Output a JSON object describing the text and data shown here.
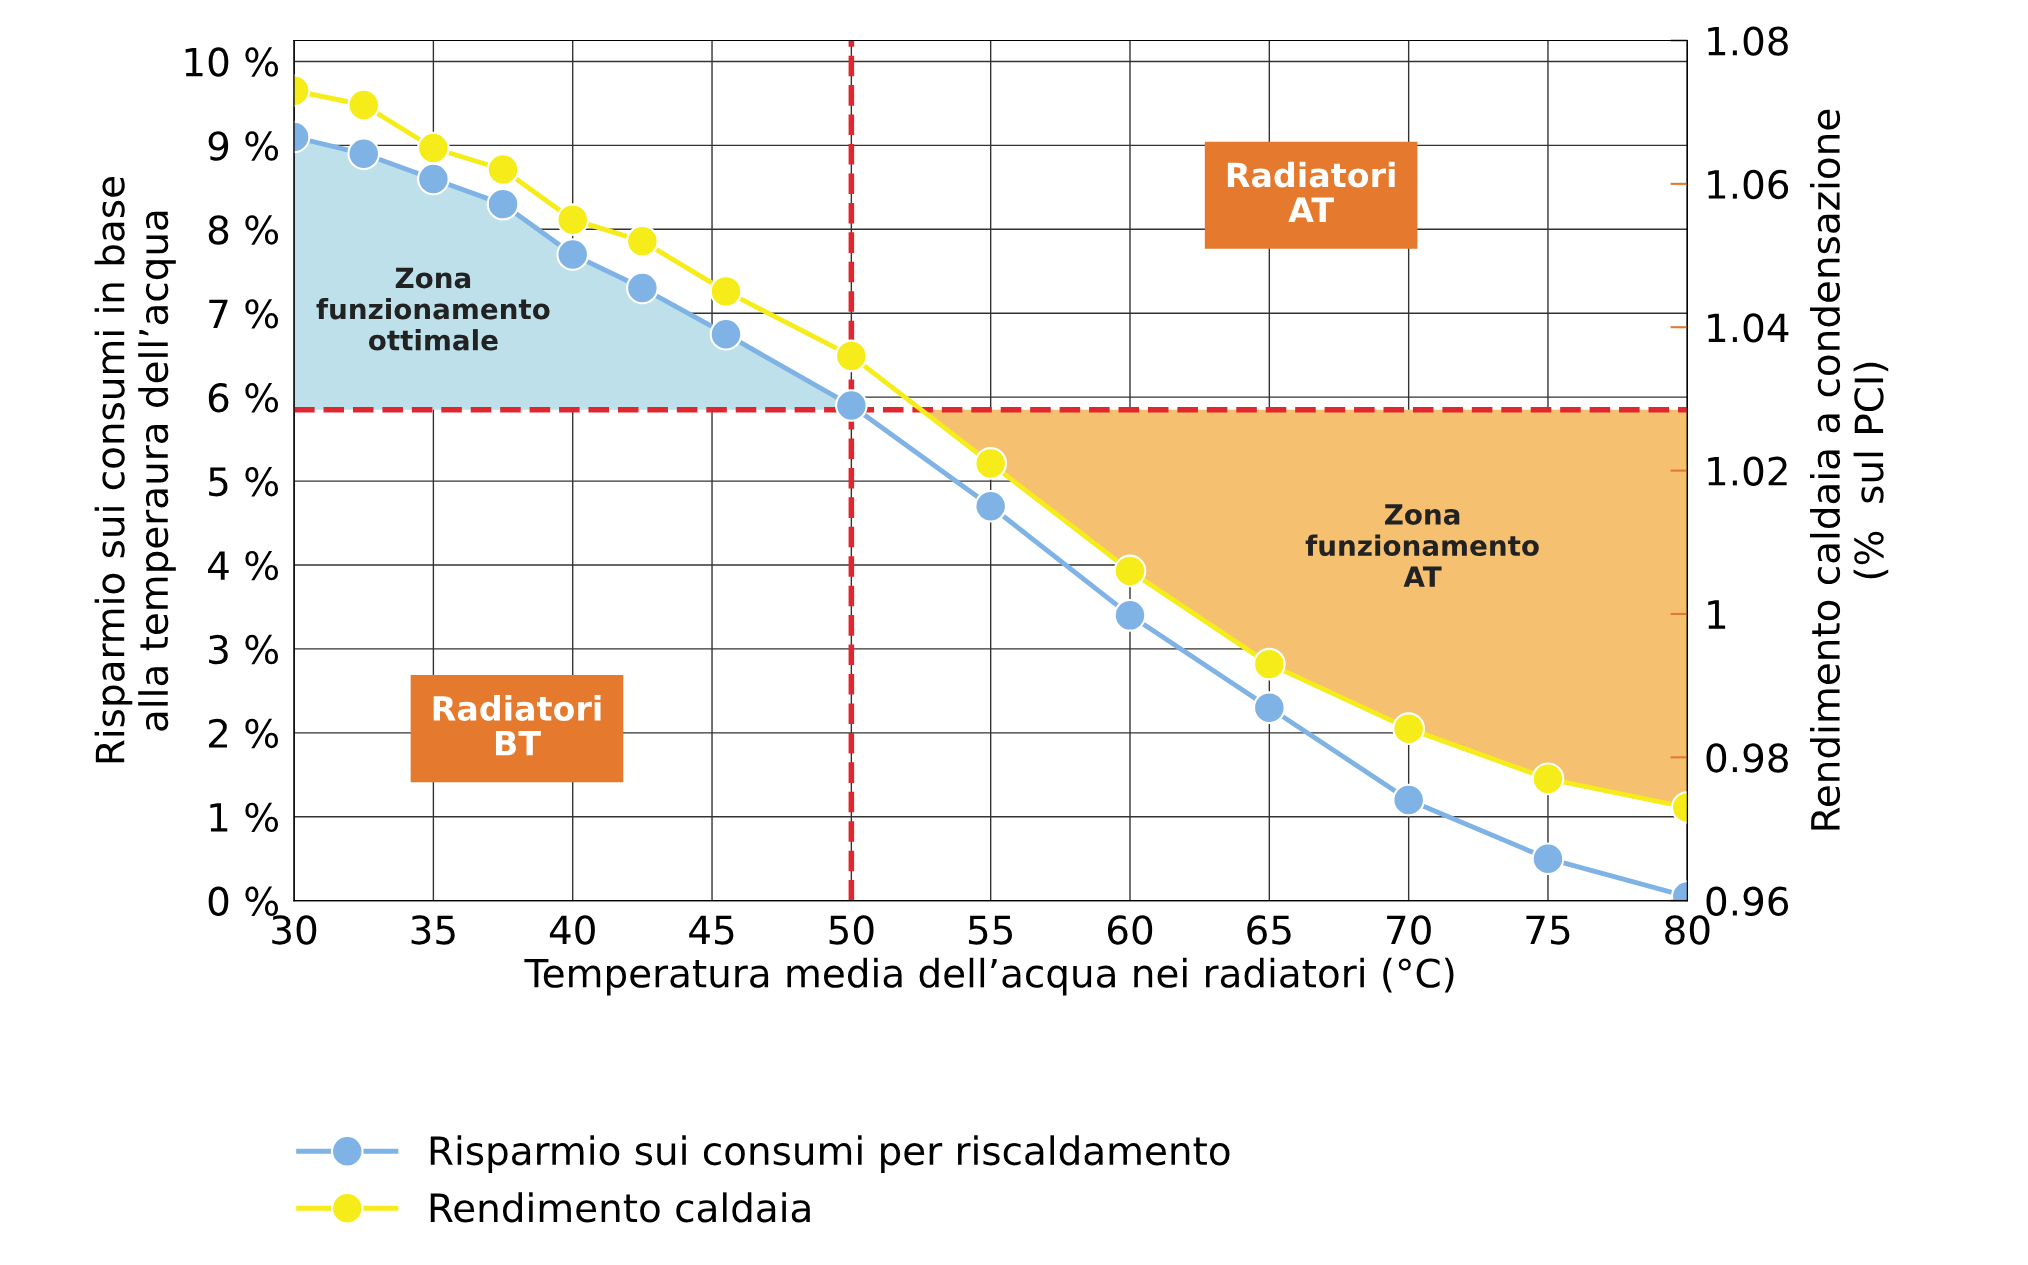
{
  "chart_data": {
    "type": "line",
    "xlabel": "Temperatura media dell’acqua nei radiatori (°C)",
    "ylabel": "Risparmio sui consumi in base\nalla temperaura dell’acqua",
    "y2label": "Rendimento caldaia a condensazione\n(%  sul PCI)",
    "xlim": [
      30,
      80
    ],
    "xticks": [
      30,
      35,
      40,
      45,
      50,
      55,
      60,
      65,
      70,
      75,
      80
    ],
    "ylim": [
      0,
      10.25
    ],
    "yticks": [
      {
        "value": 0,
        "label": "0 %"
      },
      {
        "value": 1,
        "label": "1 %"
      },
      {
        "value": 2,
        "label": "2 %"
      },
      {
        "value": 3,
        "label": "3 %"
      },
      {
        "value": 4,
        "label": "4 %"
      },
      {
        "value": 5,
        "label": "5 %"
      },
      {
        "value": 6,
        "label": "6 %"
      },
      {
        "value": 7,
        "label": "7 %"
      },
      {
        "value": 8,
        "label": "8 %"
      },
      {
        "value": 9,
        "label": "9 %"
      },
      {
        "value": 10,
        "label": "10 %"
      }
    ],
    "y2lim": [
      0.96,
      1.08
    ],
    "y2ticks": [
      0.96,
      0.98,
      1,
      1.02,
      1.04,
      1.06,
      1.08
    ],
    "series": [
      {
        "name": "Risparmio sui consumi per riscaldamento",
        "color": "#7fb2e5",
        "x": [
          30,
          32.5,
          35,
          37.5,
          40,
          42.5,
          45.5,
          50,
          55,
          60,
          65,
          70,
          75,
          80
        ],
        "values": [
          9.1,
          8.9,
          8.6,
          8.3,
          7.7,
          7.3,
          6.75,
          5.9,
          4.7,
          3.4,
          2.3,
          1.2,
          0.5,
          0.05
        ]
      },
      {
        "name": "Rendimento caldaia",
        "color": "#f5ec1a",
        "axis": "y2",
        "x": [
          30,
          32.5,
          35,
          37.5,
          40,
          42.5,
          45.5,
          50,
          55,
          60,
          65,
          70,
          75,
          80
        ],
        "values": [
          1.073,
          1.071,
          1.065,
          1.062,
          1.055,
          1.052,
          1.045,
          1.036,
          1.021,
          1.006,
          0.993,
          0.984,
          0.977,
          0.973
        ]
      }
    ],
    "ref_lines": [
      {
        "axis": "x",
        "value": 50,
        "color": "#e0262e",
        "line_style": "dashed"
      },
      {
        "axis": "y",
        "value": 5.85,
        "color": "#e0262e",
        "line_style": "dashed"
      }
    ],
    "annotations": [
      "Radiatori\nAT",
      "Radiatori\nBT",
      "Zona\nfunzionamento\nottimale",
      "Zona\nfunzionamento\nAT"
    ],
    "grid": true,
    "marker": "circle",
    "line_style": "solid",
    "legend": "bottom left"
  }
}
